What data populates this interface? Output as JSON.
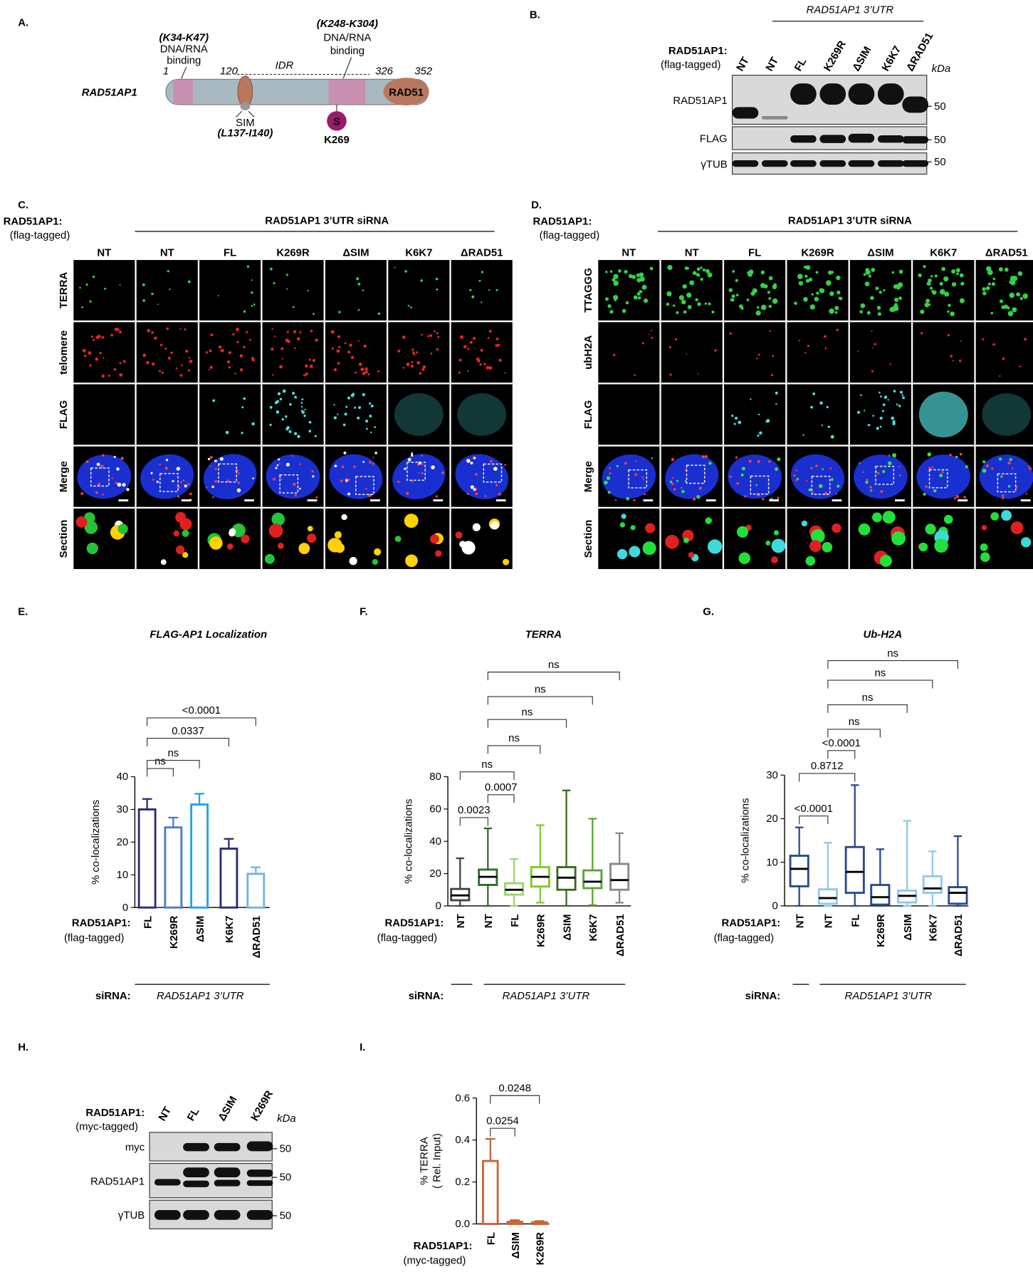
{
  "panels": {
    "a": {
      "label": "A.",
      "protein": "RAD51AP1",
      "positions": [
        "1",
        "120",
        "326",
        "352"
      ],
      "idr": "IDR",
      "binding_1": {
        "range": "(K34-K47)",
        "lines": [
          "DNA/RNA",
          "binding"
        ]
      },
      "binding_2": {
        "range": "(K248-K304)",
        "lines": [
          "DNA/RNA",
          "binding"
        ]
      },
      "rad51": "RAD51",
      "sim": {
        "name": "SIM",
        "range": "(L137-I140)"
      },
      "sumo": {
        "symbol": "S",
        "site": "K269"
      }
    },
    "b": {
      "label": "B.",
      "header": "RAD51AP1 3’UTR",
      "construct": "RAD51AP1:",
      "tag": "(flag-tagged)",
      "lanes": [
        "NT",
        "NT",
        "FL",
        "K269R",
        "ΔSIM",
        "K6K7",
        "ΔRAD51"
      ],
      "unit": "kDa",
      "blots": [
        {
          "name": "RAD51AP1",
          "marker": 50
        },
        {
          "name": "FLAG",
          "marker": 50
        },
        {
          "name": "γTUB",
          "marker": 50
        }
      ]
    },
    "c": {
      "label": "C.",
      "construct": "RAD51AP1:",
      "tag": "(flag-tagged)",
      "header": "RAD51AP1 3’UTR siRNA",
      "columns": [
        "NT",
        "NT",
        "FL",
        "K269R",
        "ΔSIM",
        "K6K7",
        "ΔRAD51"
      ],
      "rows": [
        "TERRA",
        "telomere",
        "FLAG",
        "Merge",
        "Section"
      ]
    },
    "d": {
      "label": "D.",
      "construct": "RAD51AP1:",
      "tag": "(flag-tagged)",
      "header": "RAD51AP1 3’UTR siRNA",
      "columns": [
        "NT",
        "NT",
        "FL",
        "K269R",
        "ΔSIM",
        "K6K7",
        "ΔRAD51"
      ],
      "rows": [
        "TTAGGG",
        "ubH2A",
        "FLAG",
        "Merge",
        "Section"
      ]
    },
    "h": {
      "label": "H.",
      "construct": "RAD51AP1:",
      "tag": "(myc-tagged)",
      "lanes": [
        "NT",
        "FL",
        "ΔSIM",
        "K269R"
      ],
      "unit": "kDa",
      "blots": [
        {
          "name": "myc",
          "marker": 50
        },
        {
          "name": "RAD51AP1",
          "marker": 50
        },
        {
          "name": "γTUB",
          "marker": 50
        }
      ]
    }
  },
  "chart_data": [
    {
      "type": "bar",
      "panel": "E.",
      "title": "FLAG-AP1 Localization",
      "y_label": "% co-localizations",
      "x_label": "RAD51AP1:",
      "x_sublabel": "(flag-tagged)",
      "sirna_label": "siRNA:",
      "sirna": "RAD51AP1 3’UTR",
      "categories": [
        "FL",
        "K269R",
        "ΔSIM",
        "K6K7",
        "ΔRAD51"
      ],
      "values": [
        30,
        24.5,
        31.5,
        18,
        10.3
      ],
      "errors": [
        3.2,
        3,
        3.3,
        3,
        2
      ],
      "colors": [
        "#2b2b78",
        "#4a7cc4",
        "#1fa5e0",
        "#2b2b78",
        "#6fb3ea"
      ],
      "ylim": [
        0,
        40
      ],
      "yticks": [
        0,
        10,
        20,
        30,
        40
      ],
      "p_vs_0": [
        null,
        "ns",
        "ns",
        "0.0337",
        "<0.0001"
      ]
    },
    {
      "type": "box",
      "panel": "F.",
      "title": "TERRA",
      "y_label": "% co-localizations",
      "x_label": "RAD51AP1:",
      "x_sublabel": "(flag-tagged)",
      "sirna_label": "siRNA:",
      "sirna": "RAD51AP1 3’UTR",
      "categories": [
        "NT",
        "NT",
        "FL",
        "K269R",
        "ΔSIM",
        "K6K7",
        "ΔRAD51"
      ],
      "min": [
        0,
        0,
        0,
        2,
        0,
        0.5,
        2
      ],
      "q1": [
        3.5,
        13,
        7,
        12,
        10,
        11,
        10
      ],
      "median": [
        6.5,
        18,
        10,
        18,
        17.5,
        15,
        16
      ],
      "q3": [
        10.5,
        22.5,
        14,
        24,
        24,
        22,
        26
      ],
      "max": [
        29.5,
        48,
        29,
        50,
        71.5,
        54,
        45
      ],
      "colors": [
        "#444444",
        "#2e6b2e",
        "#9ad66a",
        "#7acc2a",
        "#3a6b1e",
        "#5aa532",
        "#888888"
      ],
      "ylim": [
        0,
        80
      ],
      "yticks": [
        0,
        20,
        40,
        60,
        80
      ],
      "p_vs_0": [
        null,
        "0.0023",
        "ns",
        null,
        null,
        null,
        null
      ],
      "p_vs_1": [
        null,
        null,
        "0.0007",
        "ns",
        "ns",
        "ns",
        "ns"
      ]
    },
    {
      "type": "box",
      "panel": "G.",
      "title": "Ub-H2A",
      "y_label": "% co-localizations",
      "x_label": "RAD51AP1:",
      "x_sublabel": "(flag-tagged)",
      "sirna_label": "siRNA:",
      "sirna": "RAD51AP1 3’UTR",
      "categories": [
        "NT",
        "NT",
        "FL",
        "K269R",
        "ΔSIM",
        "K6K7",
        "ΔRAD51"
      ],
      "min": [
        0,
        0,
        0,
        0,
        0,
        0,
        0
      ],
      "q1": [
        4.5,
        0.5,
        3,
        0.3,
        0.8,
        3,
        0.5
      ],
      "median": [
        8.5,
        1.8,
        7.8,
        2,
        2.3,
        4,
        3
      ],
      "q3": [
        11.5,
        3.8,
        13.5,
        4.8,
        3.5,
        6.8,
        4.3
      ],
      "max": [
        18,
        14.5,
        27.7,
        13,
        19.5,
        12.5,
        16
      ],
      "colors": [
        "#2a4a8a",
        "#8ecae6",
        "#2a4a8a",
        "#2a4a8a",
        "#8ecae6",
        "#8ecae6",
        "#2a4a8a"
      ],
      "ylim": [
        0,
        30
      ],
      "yticks": [
        0,
        10,
        20,
        30
      ],
      "p_vs_0": [
        null,
        "<0.0001",
        "0.8712",
        null,
        null,
        null,
        null
      ],
      "p_vs_1": [
        null,
        null,
        "<0.0001",
        "ns",
        "ns",
        "ns",
        "ns"
      ]
    },
    {
      "type": "bar",
      "panel": "I.",
      "y_label": [
        "% TERRA",
        "( Rel. Input)"
      ],
      "x_label": "RAD51AP1:",
      "x_sublabel": "(myc-tagged)",
      "categories": [
        "FL",
        "ΔSIM",
        "K269R"
      ],
      "values": [
        0.3,
        0.01,
        0.008
      ],
      "errors": [
        0.105,
        0.008,
        0.006
      ],
      "color": "#c8643a",
      "ylim": [
        0,
        0.6
      ],
      "yticks": [
        {
          "value": 0,
          "label": "0.0"
        },
        0.2,
        0.4,
        0.6
      ],
      "p_vs_0": [
        null,
        "0.0254",
        "0.0248"
      ]
    }
  ]
}
